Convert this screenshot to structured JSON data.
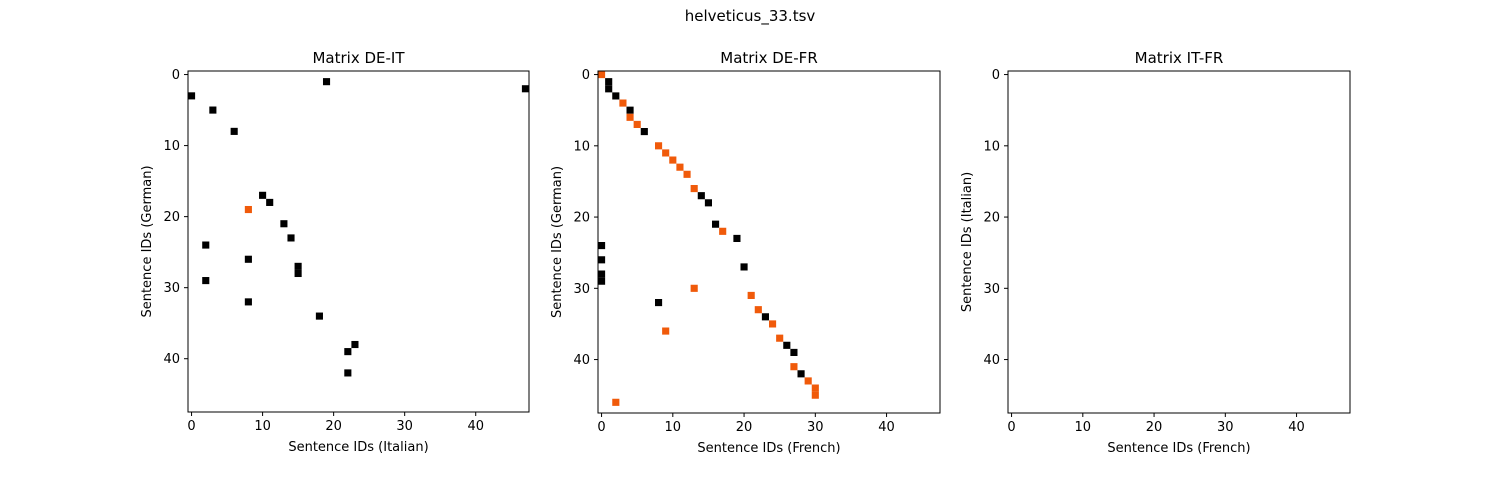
{
  "figure": {
    "title": "helveticus_33.tsv"
  },
  "colors": {
    "match": "#000000",
    "alt": "#f05a0a",
    "background": "#ffffff",
    "frame": "#000000"
  },
  "chart_data": [
    {
      "type": "heatmap",
      "title": "Matrix DE-IT",
      "xlabel": "Sentence IDs (Italian)",
      "ylabel": "Sentence IDs (German)",
      "xlim": [
        -0.5,
        47.5
      ],
      "ylim": [
        47.5,
        -0.5
      ],
      "xticks": [
        0,
        10,
        20,
        30,
        40
      ],
      "yticks": [
        0,
        10,
        20,
        30,
        40
      ],
      "grid": false,
      "cells": [
        {
          "x": 19,
          "y": 1,
          "color": "black"
        },
        {
          "x": 47,
          "y": 2,
          "color": "black"
        },
        {
          "x": 0,
          "y": 3,
          "color": "black"
        },
        {
          "x": 3,
          "y": 5,
          "color": "black"
        },
        {
          "x": 6,
          "y": 8,
          "color": "black"
        },
        {
          "x": 10,
          "y": 17,
          "color": "black"
        },
        {
          "x": 11,
          "y": 18,
          "color": "black"
        },
        {
          "x": 8,
          "y": 19,
          "color": "orange"
        },
        {
          "x": 13,
          "y": 21,
          "color": "black"
        },
        {
          "x": 14,
          "y": 23,
          "color": "black"
        },
        {
          "x": 2,
          "y": 24,
          "color": "black"
        },
        {
          "x": 8,
          "y": 26,
          "color": "black"
        },
        {
          "x": 15,
          "y": 27,
          "color": "black"
        },
        {
          "x": 15,
          "y": 28,
          "color": "black"
        },
        {
          "x": 2,
          "y": 29,
          "color": "black"
        },
        {
          "x": 8,
          "y": 32,
          "color": "black"
        },
        {
          "x": 18,
          "y": 34,
          "color": "black"
        },
        {
          "x": 23,
          "y": 38,
          "color": "black"
        },
        {
          "x": 22,
          "y": 39,
          "color": "black"
        },
        {
          "x": 22,
          "y": 42,
          "color": "black"
        }
      ]
    },
    {
      "type": "heatmap",
      "title": "Matrix DE-FR",
      "xlabel": "Sentence IDs (French)",
      "ylabel": "Sentence IDs (German)",
      "xlim": [
        -0.5,
        47.5
      ],
      "ylim": [
        47.5,
        -0.5
      ],
      "xticks": [
        0,
        10,
        20,
        30,
        40
      ],
      "yticks": [
        0,
        10,
        20,
        30,
        40
      ],
      "grid": false,
      "cells": [
        {
          "x": 0,
          "y": 0,
          "color": "orange"
        },
        {
          "x": 1,
          "y": 1,
          "color": "black"
        },
        {
          "x": 1,
          "y": 2,
          "color": "black"
        },
        {
          "x": 2,
          "y": 3,
          "color": "black"
        },
        {
          "x": 3,
          "y": 4,
          "color": "orange"
        },
        {
          "x": 4,
          "y": 5,
          "color": "black"
        },
        {
          "x": 4,
          "y": 6,
          "color": "orange"
        },
        {
          "x": 5,
          "y": 7,
          "color": "orange"
        },
        {
          "x": 6,
          "y": 8,
          "color": "black"
        },
        {
          "x": 8,
          "y": 10,
          "color": "orange"
        },
        {
          "x": 9,
          "y": 11,
          "color": "orange"
        },
        {
          "x": 10,
          "y": 12,
          "color": "orange"
        },
        {
          "x": 11,
          "y": 13,
          "color": "orange"
        },
        {
          "x": 12,
          "y": 14,
          "color": "orange"
        },
        {
          "x": 13,
          "y": 16,
          "color": "orange"
        },
        {
          "x": 14,
          "y": 17,
          "color": "black"
        },
        {
          "x": 15,
          "y": 18,
          "color": "black"
        },
        {
          "x": 16,
          "y": 21,
          "color": "black"
        },
        {
          "x": 17,
          "y": 22,
          "color": "orange"
        },
        {
          "x": 19,
          "y": 23,
          "color": "black"
        },
        {
          "x": 0,
          "y": 24,
          "color": "black"
        },
        {
          "x": 0,
          "y": 26,
          "color": "black"
        },
        {
          "x": 20,
          "y": 27,
          "color": "black"
        },
        {
          "x": 0,
          "y": 28,
          "color": "black"
        },
        {
          "x": 0,
          "y": 29,
          "color": "black"
        },
        {
          "x": 13,
          "y": 30,
          "color": "orange"
        },
        {
          "x": 21,
          "y": 31,
          "color": "orange"
        },
        {
          "x": 8,
          "y": 32,
          "color": "black"
        },
        {
          "x": 22,
          "y": 33,
          "color": "orange"
        },
        {
          "x": 23,
          "y": 34,
          "color": "black"
        },
        {
          "x": 24,
          "y": 35,
          "color": "orange"
        },
        {
          "x": 9,
          "y": 36,
          "color": "orange"
        },
        {
          "x": 25,
          "y": 37,
          "color": "orange"
        },
        {
          "x": 26,
          "y": 38,
          "color": "black"
        },
        {
          "x": 27,
          "y": 39,
          "color": "black"
        },
        {
          "x": 27,
          "y": 41,
          "color": "orange"
        },
        {
          "x": 28,
          "y": 42,
          "color": "black"
        },
        {
          "x": 29,
          "y": 43,
          "color": "orange"
        },
        {
          "x": 30,
          "y": 44,
          "color": "orange"
        },
        {
          "x": 30,
          "y": 45,
          "color": "orange"
        },
        {
          "x": 2,
          "y": 46,
          "color": "orange"
        }
      ]
    },
    {
      "type": "heatmap",
      "title": "Matrix IT-FR",
      "xlabel": "Sentence IDs (French)",
      "ylabel": "Sentence IDs (Italian)",
      "xlim": [
        -0.5,
        47.5
      ],
      "ylim": [
        47.5,
        -0.5
      ],
      "xticks": [
        0,
        10,
        20,
        30,
        40
      ],
      "yticks": [
        0,
        10,
        20,
        30,
        40
      ],
      "grid": false,
      "cells": []
    }
  ]
}
